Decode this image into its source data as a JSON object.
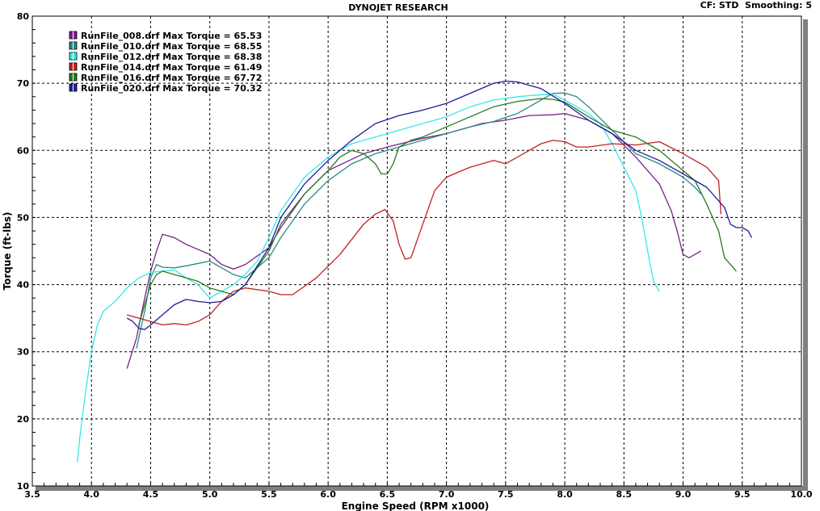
{
  "chart_data": {
    "type": "line",
    "title": "DYNOJET RESEARCH",
    "header_right": "CF: STD  Smoothing: 5",
    "xlabel": "Engine Speed (RPM x1000)",
    "ylabel": "Torque (ft-lbs)",
    "xlim": [
      3.5,
      10.0
    ],
    "ylim": [
      10,
      80
    ],
    "x_ticks": [
      "3.5",
      "4.0",
      "4.5",
      "5.0",
      "5.5",
      "6.0",
      "6.5",
      "7.0",
      "7.5",
      "8.0",
      "8.5",
      "9.0",
      "9.5",
      "10.0"
    ],
    "y_ticks": [
      "10",
      "20",
      "30",
      "40",
      "50",
      "60",
      "70",
      "80"
    ],
    "grid": true,
    "legend_placement": "top-left",
    "series": [
      {
        "name": "RunFile_008.drf Max Torque = 65.53",
        "color": "#7a1f8a",
        "x": [
          4.3,
          4.38,
          4.45,
          4.5,
          4.55,
          4.6,
          4.7,
          4.8,
          5.0,
          5.1,
          5.2,
          5.3,
          5.5,
          5.6,
          5.8,
          6.0,
          6.3,
          6.5,
          6.8,
          7.0,
          7.3,
          7.5,
          7.7,
          7.9,
          8.0,
          8.2,
          8.4,
          8.6,
          8.8,
          8.9,
          8.95,
          9.0,
          9.05,
          9.1,
          9.15
        ],
        "y": [
          27.5,
          32,
          38,
          42,
          45,
          47.5,
          47,
          46,
          44.5,
          43,
          42.3,
          43,
          45.5,
          48.5,
          53.5,
          57,
          59.5,
          60.5,
          61.8,
          62.5,
          64,
          64.5,
          65.2,
          65.3,
          65.5,
          64.5,
          62.5,
          59,
          55,
          51,
          48,
          44.5,
          44,
          44.5,
          45
        ]
      },
      {
        "name": "RunFile_010.drf Max Torque = 68.55",
        "color": "#2a8a84",
        "x": [
          4.38,
          4.45,
          4.5,
          4.55,
          4.6,
          4.7,
          4.8,
          5.0,
          5.1,
          5.2,
          5.3,
          5.5,
          5.6,
          5.8,
          6.0,
          6.2,
          6.4,
          6.6,
          6.8,
          7.0,
          7.2,
          7.4,
          7.6,
          7.8,
          7.9,
          8.0,
          8.1,
          8.2,
          8.4,
          8.6,
          8.8,
          9.0,
          9.1,
          9.15
        ],
        "y": [
          30.5,
          36,
          41,
          43,
          42.6,
          42.5,
          42.8,
          43.5,
          42.5,
          41.5,
          41,
          44,
          47,
          52,
          55.5,
          58,
          59.5,
          60.5,
          61.5,
          62.5,
          63.5,
          64.3,
          65.5,
          67.5,
          68.5,
          68.55,
          68,
          66.5,
          63,
          59.5,
          58,
          56,
          54.5,
          53.5
        ]
      },
      {
        "name": "RunFile_012.drf Max Torque = 68.38",
        "color": "#35e8e8",
        "x": [
          3.88,
          3.9,
          3.95,
          4.0,
          4.05,
          4.1,
          4.2,
          4.3,
          4.4,
          4.5,
          4.6,
          4.7,
          4.8,
          4.9,
          5.0,
          5.1,
          5.2,
          5.3,
          5.4,
          5.5,
          5.6,
          5.8,
          6.0,
          6.2,
          6.4,
          6.6,
          6.8,
          7.0,
          7.2,
          7.4,
          7.6,
          7.8,
          7.9,
          8.0,
          8.1,
          8.2,
          8.3,
          8.4,
          8.5,
          8.6,
          8.65,
          8.7,
          8.75,
          8.8
        ],
        "y": [
          13.5,
          17,
          24,
          30,
          34,
          36,
          37.5,
          39.5,
          41,
          41.8,
          42,
          42.2,
          41,
          40,
          38,
          39,
          40,
          41.5,
          43.5,
          47,
          51,
          56,
          59,
          61,
          62,
          63,
          64,
          65,
          66.5,
          67.5,
          68,
          68.3,
          68.38,
          67.5,
          66.5,
          65.5,
          64,
          61,
          57.5,
          54,
          50,
          45,
          40.5,
          39
        ]
      },
      {
        "name": "RunFile_014.drf Max Torque = 61.49",
        "color": "#c42020",
        "x": [
          4.3,
          4.4,
          4.5,
          4.6,
          4.7,
          4.8,
          4.9,
          5.0,
          5.1,
          5.2,
          5.3,
          5.5,
          5.6,
          5.7,
          5.9,
          6.1,
          6.3,
          6.4,
          6.48,
          6.55,
          6.6,
          6.65,
          6.7,
          6.8,
          6.9,
          7.0,
          7.2,
          7.4,
          7.5,
          7.6,
          7.7,
          7.8,
          7.9,
          8.0,
          8.1,
          8.2,
          8.4,
          8.6,
          8.8,
          9.0,
          9.1,
          9.2,
          9.3,
          9.32
        ],
        "y": [
          35.5,
          35,
          34.5,
          34,
          34.2,
          34,
          34.5,
          35.5,
          37.5,
          39,
          39.5,
          39,
          38.5,
          38.5,
          41,
          44.5,
          49,
          50.5,
          51.2,
          49.5,
          46,
          43.8,
          44,
          49,
          54,
          56,
          57.5,
          58.5,
          58,
          59,
          60,
          61,
          61.49,
          61.3,
          60.5,
          60.5,
          61,
          60.8,
          61.3,
          59.5,
          58.5,
          57.5,
          55.5,
          50.5
        ]
      },
      {
        "name": "RunFile_016.drf Max Torque = 67.72",
        "color": "#2a7a1e",
        "x": [
          4.4,
          4.45,
          4.5,
          4.55,
          4.6,
          4.7,
          4.8,
          4.9,
          5.0,
          5.1,
          5.2,
          5.3,
          5.5,
          5.6,
          5.8,
          6.0,
          6.1,
          6.2,
          6.3,
          6.4,
          6.45,
          6.5,
          6.55,
          6.6,
          6.7,
          6.8,
          7.0,
          7.2,
          7.4,
          7.6,
          7.8,
          7.9,
          8.0,
          8.2,
          8.4,
          8.6,
          8.7,
          8.8,
          9.0,
          9.1,
          9.2,
          9.3,
          9.35,
          9.4,
          9.45
        ],
        "y": [
          34,
          37,
          40,
          41.5,
          42,
          41.5,
          41,
          40.5,
          39.5,
          39,
          38.5,
          40,
          45,
          49,
          53.5,
          57,
          59,
          60,
          59.5,
          58,
          56.5,
          56.5,
          58,
          60.5,
          61.5,
          62,
          63.5,
          65,
          66.5,
          67.3,
          67.72,
          67.6,
          67.2,
          65,
          63,
          62,
          61,
          60,
          57,
          55.5,
          52,
          48,
          44,
          43,
          42
        ]
      },
      {
        "name": "RunFile_020.drf Max Torque = 70.32",
        "color": "#1c1c9c",
        "x": [
          4.3,
          4.35,
          4.4,
          4.45,
          4.5,
          4.6,
          4.7,
          4.8,
          4.9,
          5.0,
          5.1,
          5.2,
          5.3,
          5.5,
          5.6,
          5.8,
          6.0,
          6.2,
          6.4,
          6.6,
          6.8,
          7.0,
          7.2,
          7.4,
          7.5,
          7.6,
          7.8,
          8.0,
          8.2,
          8.4,
          8.6,
          8.8,
          9.0,
          9.2,
          9.35,
          9.4,
          9.45,
          9.5,
          9.55,
          9.58
        ],
        "y": [
          35,
          34.5,
          33.5,
          33.3,
          34,
          35.5,
          37,
          37.8,
          37.5,
          37.3,
          37.5,
          38.5,
          40,
          45.5,
          50,
          55,
          58.5,
          61.5,
          64,
          65.2,
          66,
          67,
          68.5,
          70,
          70.32,
          70.2,
          69.2,
          67,
          64.5,
          62.5,
          60,
          58.5,
          56.5,
          54.5,
          51.5,
          49,
          48.5,
          48.5,
          48,
          47
        ]
      }
    ]
  }
}
